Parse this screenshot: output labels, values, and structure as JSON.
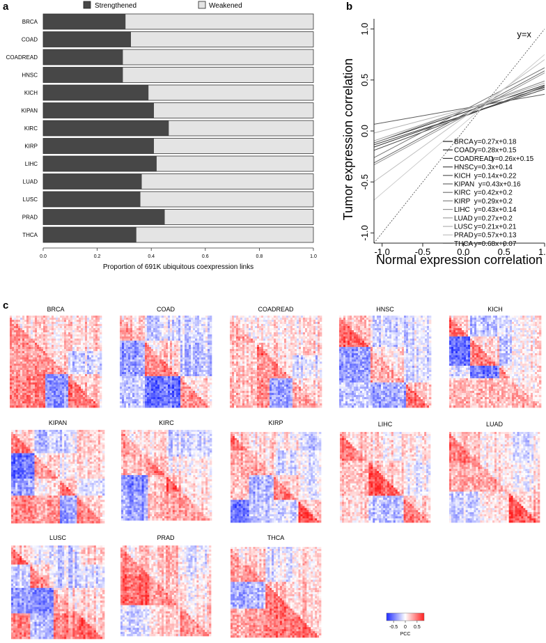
{
  "chart_data": [
    {
      "panel": "a",
      "type": "bar",
      "orientation": "horizontal",
      "stacked": true,
      "categories": [
        "BRCA",
        "COAD",
        "COADREAD",
        "HNSC",
        "KICH",
        "KIPAN",
        "KIRC",
        "KIRP",
        "LIHC",
        "LUAD",
        "LUSC",
        "PRAD",
        "THCA"
      ],
      "series": [
        {
          "name": "Strengthened",
          "color": "#474747",
          "values": [
            0.305,
            0.325,
            0.295,
            0.295,
            0.39,
            0.41,
            0.465,
            0.41,
            0.42,
            0.365,
            0.36,
            0.45,
            0.345
          ]
        },
        {
          "name": "Weakened",
          "color": "#e4e4e4",
          "values": [
            0.695,
            0.675,
            0.705,
            0.705,
            0.61,
            0.59,
            0.535,
            0.59,
            0.58,
            0.635,
            0.64,
            0.55,
            0.655
          ]
        }
      ],
      "legend": [
        "Strengthened",
        "Weakened"
      ],
      "xlabel": "Proportion of 691K ubiquitous coexpression links",
      "xlim": [
        0,
        1.0
      ],
      "xticks": [
        "0.0",
        "0.2",
        "0.4",
        "0.6",
        "0.8",
        "1.0"
      ]
    },
    {
      "panel": "b",
      "type": "line",
      "xlabel": "Normal expression correlation",
      "ylabel": "Tumor expression correlation",
      "xlim": [
        -1.1,
        1.0
      ],
      "ylim": [
        -1.1,
        1.1
      ],
      "xticks": [
        "-1.0",
        "-0.5",
        "0.0",
        "0.5",
        "1.0"
      ],
      "yticks": [
        "-1.0",
        "-0.5",
        "0.0",
        "0.5",
        "1.0"
      ],
      "reference_label": "y=x",
      "series": [
        {
          "name": "BRCA",
          "equation": "y=0.27x+0.18",
          "slope": 0.27,
          "intercept": 0.18,
          "color": "#1e1e1e"
        },
        {
          "name": "COAD",
          "equation": "y=0.28x+0.15",
          "slope": 0.28,
          "intercept": 0.15,
          "color": "#2d2d2d"
        },
        {
          "name": "COADREAD",
          "equation": "y=0.26x+0.15",
          "slope": 0.26,
          "intercept": 0.15,
          "color": "#3c3c3c"
        },
        {
          "name": "HNSC",
          "equation": "y=0.3x+0.14",
          "slope": 0.3,
          "intercept": 0.14,
          "color": "#4a4a4a"
        },
        {
          "name": "KICH",
          "equation": "y=0.14x+0.22",
          "slope": 0.14,
          "intercept": 0.22,
          "color": "#595959"
        },
        {
          "name": "KIPAN",
          "equation": "y=0.43x+0.16",
          "slope": 0.43,
          "intercept": 0.16,
          "color": "#676767"
        },
        {
          "name": "KIRC",
          "equation": "y=0.42x+0.2",
          "slope": 0.42,
          "intercept": 0.2,
          "color": "#767676"
        },
        {
          "name": "KIRP",
          "equation": "y=0.29x+0.2",
          "slope": 0.29,
          "intercept": 0.2,
          "color": "#858585"
        },
        {
          "name": "LIHC",
          "equation": "y=0.43x+0.14",
          "slope": 0.43,
          "intercept": 0.14,
          "color": "#939393"
        },
        {
          "name": "LUAD",
          "equation": "y=0.27x+0.2",
          "slope": 0.27,
          "intercept": 0.2,
          "color": "#a2a2a2"
        },
        {
          "name": "LUSC",
          "equation": "y=0.21x+0.21",
          "slope": 0.21,
          "intercept": 0.21,
          "color": "#b0b0b0"
        },
        {
          "name": "PRAD",
          "equation": "y=0.57x+0.13",
          "slope": 0.57,
          "intercept": 0.13,
          "color": "#bfbfbf"
        },
        {
          "name": "THCA",
          "equation": "y=0.68x+0.07",
          "slope": 0.68,
          "intercept": 0.07,
          "color": "#cdcdcd"
        }
      ]
    },
    {
      "panel": "c",
      "type": "heatmap",
      "colorbar_label": "PCC",
      "colorbar_ticks": [
        "-0.5",
        "0",
        "0.5"
      ],
      "colorbar_range": [
        -0.8,
        0.8
      ],
      "colors": {
        "low": "#1f2bff",
        "mid": "#ffffff",
        "high": "#ff2020"
      },
      "matrices": [
        "BRCA",
        "COAD",
        "COADREAD",
        "HNSC",
        "KICH",
        "KIPAN",
        "KIRC",
        "KIRP",
        "LIHC",
        "LUAD",
        "LUSC",
        "PRAD",
        "THCA"
      ]
    }
  ],
  "panel_labels": {
    "a": "a",
    "b": "b",
    "c": "c"
  }
}
